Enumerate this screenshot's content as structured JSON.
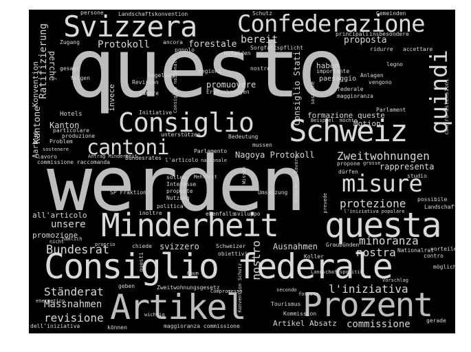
{
  "colors": {
    "background": "#000000",
    "frame": "#ffffff",
    "primary": "#bdbdbd",
    "secondary": "#d9d9d9"
  },
  "words": [
    "questo",
    "werden",
    "Consiglio federale",
    "Minderheit",
    "Artikel",
    "Prozent",
    "questa",
    "Svizzera",
    "Confederazione",
    "Schweiz",
    "Consiglio",
    "cantoni",
    "misure",
    "quindi",
    "Zweitwohnungen",
    "protezione",
    "Bundesrat",
    "nostra",
    "minoranza",
    "l'iniziativa",
    "Ständerat",
    "Massnahmen",
    "revisione",
    "commissione",
    "unsere",
    "all'articolo",
    "promozione",
    "Ausnahmen",
    "Protokoll",
    "forestale",
    "bereit",
    "proposta",
    "haben",
    "Kanton",
    "perché",
    "Ratifizierung",
    "Kantone",
    "Konvention",
    "Aarhus",
    "formazione",
    "queste",
    "Motion",
    "promuovere",
    "invece",
    "Nagoya Protokoll",
    "rappresenta",
    "svizzero",
    "nostro",
    "Artikel Absatz",
    "Consiglio Stati",
    "paesaggio",
    "Hotels",
    "unterstützen",
    "Initiative",
    "Bedeutung",
    "mussen",
    "dürfen",
    "SP Fraktion",
    "inoltre",
    "ebenfalls",
    "sviluppo",
    "possibile",
    "Landschaft",
    "Umsetzung",
    "Schweizer",
    "obiettivi",
    "Kommission",
    "Tourismus",
    "können",
    "dell'iniziativa",
    "maggioranza commissione",
    "Zweitwohnungsgesetz",
    "geben",
    "Koller",
    "Graubünden",
    "Nationalrat",
    "vorteile",
    "contro",
    "möglich",
    "gerade",
    "persone",
    "Landschaftskonvention",
    "Schutz",
    "Gemeinden",
    "principali",
    "insbesondere",
    "Zugang",
    "ancora",
    "popolo",
    "Wytwiden",
    "Sorgfaltspflicht",
    "ridurre",
    "accettare",
    "gesagt",
    "folgen",
    "Regelung",
    "Revision",
    "Camere",
    "regioni",
    "nostre",
    "legno",
    "importante",
    "Anlagen",
    "vengono",
    "federale",
    "maggioranza",
    "Erstwohnungen",
    "contro astensioni",
    "Parlament",
    "Beispiel",
    "möchte",
    "particolare",
    "produzione",
    "Problem",
    "sostenere",
    "lavoro",
    "commissione raccomanda",
    "Antrag Minderheit",
    "Bundesrates",
    "l'articolo",
    "nazionale",
    "Parlamento",
    "propone",
    "grosse",
    "studio",
    "sollen",
    "Interesse",
    "proposte",
    "Nutzung",
    "politica",
    "Mehrheit",
    "Wissen",
    "sicurezza lavoro",
    "prevede",
    "l'iniziativa popolare",
    "chiede",
    "proprio",
    "nicht",
    "nämlich",
    "questi",
    "Compromesso",
    "secondo",
    "foreste",
    "wichtig",
    "energetico",
    "Consiglio nazionale",
    "sostiene",
    "Konvention Schutz",
    "Vorschlag",
    "Raum",
    "Landschaftspolitik"
  ]
}
